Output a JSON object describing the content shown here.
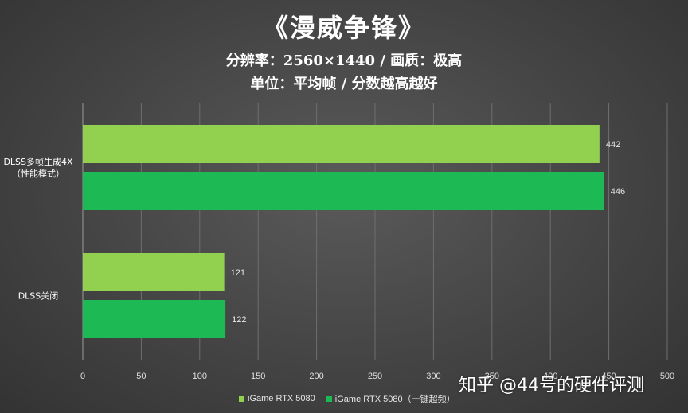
{
  "title": "《漫威争锋》",
  "subtitle_lines": [
    "分辨率：2560×1440 / 画质：极高",
    "单位：平均帧 / 分数越高越好"
  ],
  "watermark": "知乎 @44号的硬件评测",
  "chart_data": {
    "type": "bar",
    "orientation": "horizontal",
    "categories": [
      {
        "lines": [
          "DLSS多帧生成4X",
          "（性能模式）"
        ]
      },
      {
        "lines": [
          "DLSS关闭"
        ]
      }
    ],
    "series": [
      {
        "name": "iGame RTX 5080",
        "color": "#92d050",
        "values": [
          442,
          121
        ]
      },
      {
        "name": "iGame RTX 5080（一键超频）",
        "color": "#1db954",
        "values": [
          446,
          122
        ]
      }
    ],
    "xlim": [
      0,
      500
    ],
    "xticks": [
      0,
      50,
      100,
      150,
      200,
      250,
      300,
      350,
      400,
      450,
      500
    ],
    "grid": true,
    "legend": "bottom"
  }
}
